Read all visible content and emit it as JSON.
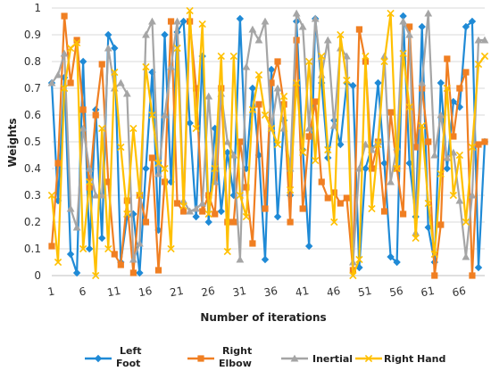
{
  "chart_data": {
    "type": "line",
    "xlabel": "Number of iterations",
    "ylabel": "Weights",
    "ylim": [
      0,
      1
    ],
    "yticks": [
      "0",
      "0.1",
      "0.2",
      "0.3",
      "0.4",
      "0.5",
      "0.6",
      "0.7",
      "0.8",
      "0.9",
      "1"
    ],
    "xlim": [
      1,
      70
    ],
    "xticks": [
      "1",
      "6",
      "11",
      "16",
      "21",
      "26",
      "31",
      "36",
      "41",
      "46",
      "51",
      "56",
      "61",
      "66"
    ],
    "grid": "horizontal",
    "legend_position": "bottom",
    "series": [
      {
        "name": "Left Foot",
        "legend_lines": [
          "Left",
          "Foot"
        ],
        "color": "#1f8ad6",
        "marker": "diamond",
        "x": [
          1,
          2,
          3,
          4,
          5,
          6,
          7,
          8,
          9,
          10,
          11,
          12,
          13,
          14,
          15,
          16,
          17,
          18,
          19,
          20,
          21,
          22,
          23,
          24,
          25,
          26,
          27,
          28,
          29,
          30,
          31,
          32,
          33,
          34,
          35,
          36,
          37,
          38,
          39,
          40,
          41,
          42,
          43,
          44,
          45,
          46,
          47,
          48,
          49,
          50,
          51,
          52,
          53,
          54,
          55,
          56,
          57,
          58,
          59,
          60,
          61,
          62,
          63,
          64,
          65,
          66,
          67,
          68,
          69,
          70
        ],
        "values": [
          0.72,
          0.28,
          0.74,
          0.08,
          0.01,
          0.8,
          0.1,
          0.62,
          0.14,
          0.9,
          0.85,
          0.05,
          0.22,
          0.23,
          0.01,
          0.4,
          0.76,
          0.17,
          0.9,
          0.35,
          0.91,
          0.95,
          0.57,
          0.22,
          0.82,
          0.2,
          0.55,
          0.24,
          0.46,
          0.3,
          0.96,
          0.4,
          0.7,
          0.45,
          0.06,
          0.77,
          0.22,
          0.58,
          0.3,
          0.95,
          0.47,
          0.11,
          0.96,
          0.72,
          0.44,
          0.58,
          0.49,
          0.72,
          0.71,
          0.03,
          0.4,
          0.48,
          0.72,
          0.42,
          0.07,
          0.05,
          0.97,
          0.42,
          0.22,
          0.93,
          0.18,
          0.05,
          0.72,
          0.4,
          0.65,
          0.63,
          0.93,
          0.95,
          0.03,
          0.5
        ]
      },
      {
        "name": "Right Elbow",
        "legend_lines": [
          "Right",
          "Elbow"
        ],
        "color": "#f07f22",
        "marker": "square",
        "x": [
          1,
          2,
          3,
          4,
          5,
          6,
          7,
          8,
          9,
          10,
          11,
          12,
          13,
          14,
          15,
          16,
          17,
          18,
          19,
          20,
          21,
          22,
          23,
          24,
          25,
          26,
          27,
          28,
          29,
          30,
          31,
          32,
          33,
          34,
          35,
          36,
          37,
          38,
          39,
          40,
          41,
          42,
          43,
          44,
          45,
          46,
          47,
          48,
          49,
          50,
          51,
          52,
          53,
          54,
          55,
          56,
          57,
          58,
          59,
          60,
          61,
          62,
          63,
          64,
          65,
          66,
          67,
          68,
          69,
          70
        ],
        "values": [
          0.11,
          0.42,
          0.97,
          0.72,
          0.88,
          0.62,
          0.33,
          0.6,
          0.79,
          0.35,
          0.08,
          0.04,
          0.28,
          0.01,
          0.3,
          0.2,
          0.44,
          0.02,
          0.35,
          0.95,
          0.27,
          0.24,
          0.95,
          0.7,
          0.24,
          0.3,
          0.23,
          0.7,
          0.2,
          0.2,
          0.5,
          0.33,
          0.12,
          0.64,
          0.25,
          0.72,
          0.8,
          0.64,
          0.2,
          0.88,
          0.25,
          0.52,
          0.65,
          0.35,
          0.29,
          0.31,
          0.27,
          0.29,
          0.02,
          0.92,
          0.8,
          0.4,
          0.5,
          0.24,
          0.61,
          0.4,
          0.23,
          0.93,
          0.48,
          0.7,
          0.5,
          0.0,
          0.19,
          0.81,
          0.52,
          0.7,
          0.76,
          0.0,
          0.49,
          0.5
        ]
      },
      {
        "name": "Inertial",
        "legend_lines": [
          "Inertial"
        ],
        "color": "#a5a5a5",
        "marker": "triangle",
        "x": [
          1,
          2,
          3,
          4,
          5,
          6,
          7,
          8,
          9,
          10,
          11,
          12,
          13,
          14,
          15,
          16,
          17,
          18,
          19,
          20,
          21,
          22,
          23,
          24,
          25,
          26,
          27,
          28,
          29,
          30,
          31,
          32,
          33,
          34,
          35,
          36,
          37,
          38,
          39,
          40,
          41,
          42,
          43,
          44,
          45,
          46,
          47,
          48,
          49,
          50,
          51,
          52,
          53,
          54,
          55,
          56,
          57,
          58,
          59,
          60,
          61,
          62,
          63,
          64,
          65,
          66,
          67,
          68,
          69,
          70
        ],
        "values": [
          0.72,
          0.75,
          0.83,
          0.25,
          0.18,
          0.55,
          0.4,
          0.3,
          0.3,
          0.85,
          0.7,
          0.72,
          0.68,
          0.06,
          0.12,
          0.9,
          0.95,
          0.38,
          0.6,
          0.78,
          0.95,
          0.28,
          0.24,
          0.25,
          0.27,
          0.67,
          0.35,
          0.68,
          0.5,
          0.45,
          0.06,
          0.78,
          0.92,
          0.88,
          0.95,
          0.55,
          0.7,
          0.55,
          0.4,
          0.98,
          0.93,
          0.55,
          0.96,
          0.75,
          0.88,
          0.56,
          0.85,
          0.82,
          0.05,
          0.4,
          0.49,
          0.47,
          0.5,
          0.82,
          0.35,
          0.48,
          0.95,
          0.9,
          0.16,
          0.72,
          0.98,
          0.45,
          0.6,
          0.44,
          0.46,
          0.28,
          0.07,
          0.3,
          0.88,
          0.88
        ]
      },
      {
        "name": "Right Hand",
        "legend_lines": [
          "Right Hand"
        ],
        "color": "#ffc000",
        "marker": "cross",
        "x": [
          1,
          2,
          3,
          4,
          5,
          6,
          7,
          8,
          9,
          10,
          11,
          12,
          13,
          14,
          15,
          16,
          17,
          18,
          19,
          20,
          21,
          22,
          23,
          24,
          25,
          26,
          27,
          28,
          29,
          30,
          31,
          32,
          33,
          34,
          35,
          36,
          37,
          38,
          39,
          40,
          41,
          42,
          43,
          44,
          45,
          46,
          47,
          48,
          49,
          50,
          51,
          52,
          53,
          54,
          55,
          56,
          57,
          58,
          59,
          60,
          61,
          62,
          63,
          64,
          65,
          66,
          67,
          68,
          69,
          70
        ],
        "values": [
          0.3,
          0.05,
          0.7,
          0.85,
          0.87,
          0.1,
          0.35,
          0.0,
          0.55,
          0.1,
          0.76,
          0.48,
          0.23,
          0.55,
          0.3,
          0.78,
          0.6,
          0.42,
          0.4,
          0.1,
          0.85,
          0.26,
          0.99,
          0.55,
          0.94,
          0.23,
          0.4,
          0.82,
          0.09,
          0.82,
          0.3,
          0.22,
          0.62,
          0.75,
          0.6,
          0.55,
          0.49,
          0.67,
          0.32,
          0.72,
          0.46,
          0.8,
          0.43,
          0.82,
          0.47,
          0.2,
          0.9,
          0.73,
          0.0,
          0.06,
          0.82,
          0.25,
          0.49,
          0.8,
          0.98,
          0.4,
          0.83,
          0.63,
          0.14,
          0.56,
          0.27,
          0.08,
          0.38,
          0.7,
          0.3,
          0.45,
          0.2,
          0.48,
          0.79,
          0.82
        ]
      }
    ]
  }
}
